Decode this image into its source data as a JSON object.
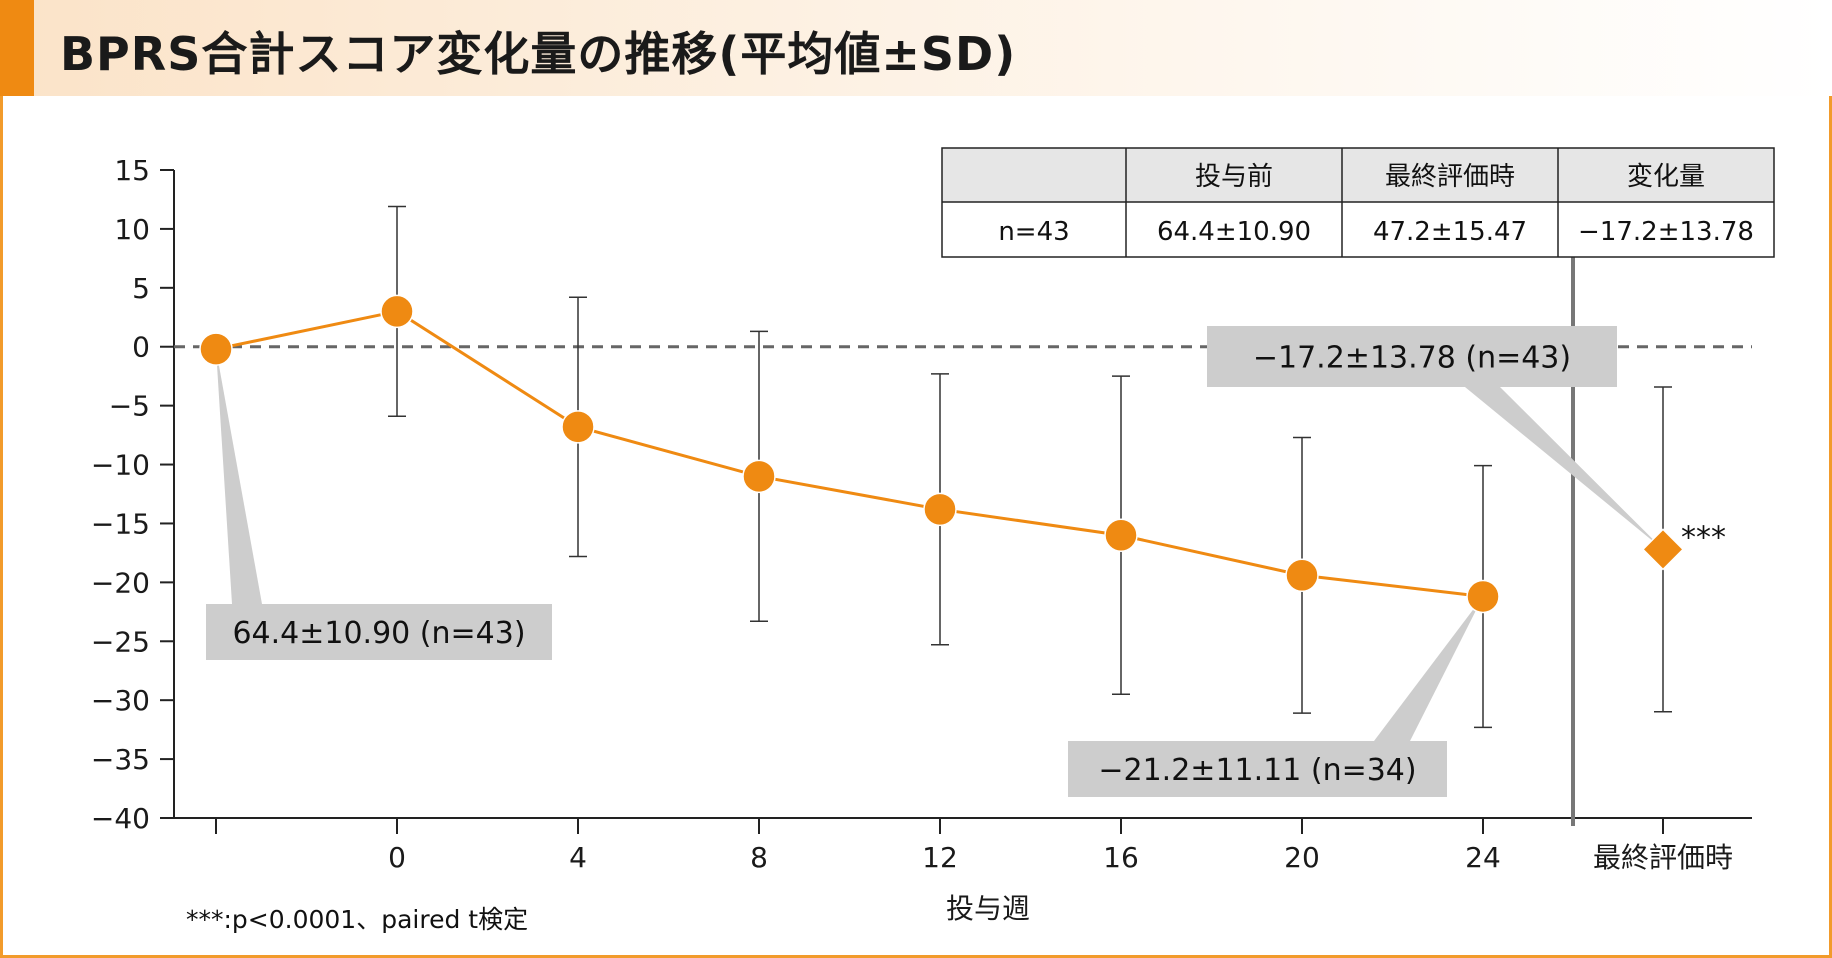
{
  "title": "BPRS合計スコア変化量の推移(平均値±SD)",
  "colors": {
    "accent": "#ef8a12",
    "border": "#f29b2b",
    "series": "#ef8a12",
    "callout_bg": "#cdcdcd",
    "table_header_bg": "#e6e6e6",
    "zero_line": "#666666"
  },
  "chart_data": {
    "type": "line",
    "xlabel": "投与週",
    "ylabel": "",
    "ylim": [
      -40,
      15
    ],
    "yticks": [
      15,
      10,
      5,
      0,
      -5,
      -10,
      -15,
      -20,
      -25,
      -30,
      -35,
      -40
    ],
    "ytick_labels": [
      "15",
      "10",
      "5",
      "0",
      "−5",
      "−10",
      "−15",
      "−20",
      "−25",
      "−30",
      "−35",
      "−40"
    ],
    "categories": [
      "",
      "0",
      "4",
      "8",
      "12",
      "16",
      "20",
      "24",
      "最終評価時"
    ],
    "series": [
      {
        "marker": "circle",
        "points": [
          {
            "x": "",
            "y": -0.2,
            "sd": null
          },
          {
            "x": "0",
            "y": 3.0,
            "sd": 8.9
          },
          {
            "x": "4",
            "y": -6.8,
            "sd": 11.0
          },
          {
            "x": "8",
            "y": -11.0,
            "sd": 12.3
          },
          {
            "x": "12",
            "y": -13.8,
            "sd": 11.5
          },
          {
            "x": "16",
            "y": -16.0,
            "sd": 13.5
          },
          {
            "x": "20",
            "y": -19.4,
            "sd": 11.7
          },
          {
            "x": "24",
            "y": -21.2,
            "sd": 11.11
          }
        ]
      },
      {
        "marker": "diamond",
        "points": [
          {
            "x": "最終評価時",
            "y": -17.2,
            "sd": 13.78
          }
        ]
      }
    ],
    "reference_line": 0,
    "annotations": [
      {
        "text": "64.4±10.90 (n=43)",
        "point_index": 0
      },
      {
        "text": "−21.2±11.11 (n=34)",
        "point_index": 7
      },
      {
        "text": "−17.2±13.78 (n=43)",
        "point_index": 8
      }
    ],
    "significance_marker": "***",
    "table": {
      "headers": [
        "",
        "投与前",
        "最終評価時",
        "変化量"
      ],
      "rows": [
        [
          "n=43",
          "64.4±10.90",
          "47.2±15.47",
          "−17.2±13.78"
        ]
      ]
    },
    "footnote": "***:p<0.0001、paired t検定"
  }
}
